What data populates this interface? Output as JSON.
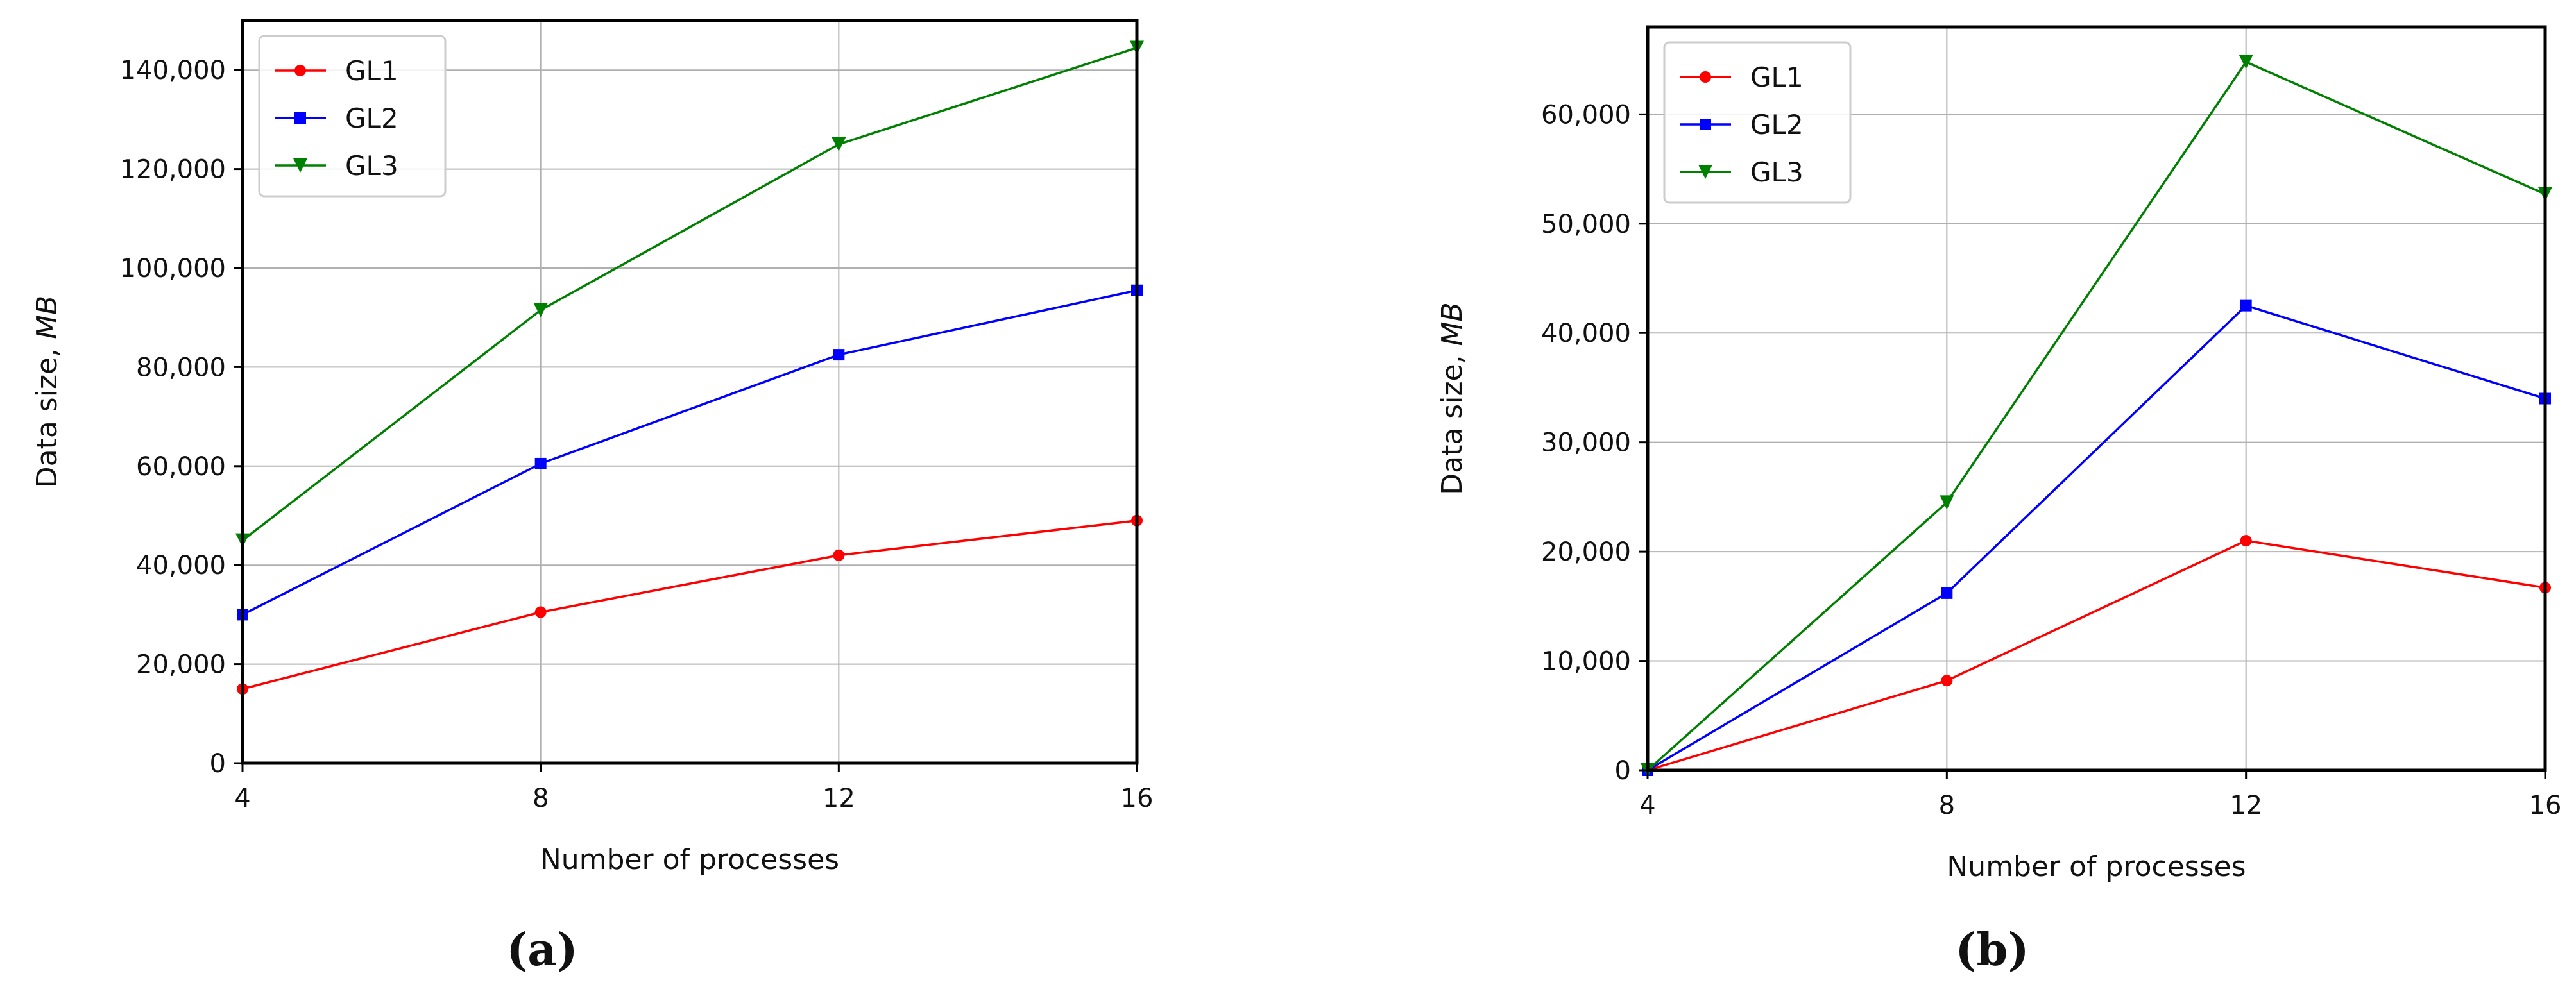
{
  "chart_data": [
    {
      "panel": "a",
      "type": "line",
      "xlabel": "Number of processes",
      "ylabel_prefix": "Data size, ",
      "ylabel_unit": "MB",
      "categories": [
        "4",
        "8",
        "12",
        "16"
      ],
      "x": [
        4,
        8,
        12,
        16
      ],
      "xlim": [
        4,
        16
      ],
      "ylim": [
        0,
        150000
      ],
      "yticks": [
        0,
        20000,
        40000,
        60000,
        80000,
        100000,
        120000,
        140000
      ],
      "ytick_labels": [
        "0",
        "20,000",
        "40,000",
        "60,000",
        "80,000",
        "100,000",
        "120,000",
        "140,000"
      ],
      "grid": true,
      "legend_position": "top-left",
      "series": [
        {
          "name": "GL1",
          "color": "#ff0000",
          "marker": "circle",
          "values": [
            15000,
            30500,
            42000,
            49000
          ]
        },
        {
          "name": "GL2",
          "color": "#0000ff",
          "marker": "square",
          "values": [
            30000,
            60500,
            82500,
            95500
          ]
        },
        {
          "name": "GL3",
          "color": "#008000",
          "marker": "triangle-down",
          "values": [
            45000,
            91500,
            125000,
            144500
          ]
        }
      ]
    },
    {
      "panel": "b",
      "type": "line",
      "xlabel": "Number of processes",
      "ylabel_prefix": "Data size, ",
      "ylabel_unit": "MB",
      "categories": [
        "4",
        "8",
        "12",
        "16"
      ],
      "x": [
        4,
        8,
        12,
        16
      ],
      "xlim": [
        4,
        16
      ],
      "ylim": [
        0,
        68000
      ],
      "yticks": [
        0,
        10000,
        20000,
        30000,
        40000,
        50000,
        60000
      ],
      "ytick_labels": [
        "0",
        "10,000",
        "20,000",
        "30,000",
        "40,000",
        "50,000",
        "60,000"
      ],
      "grid": true,
      "legend_position": "top-left",
      "series": [
        {
          "name": "GL1",
          "color": "#ff0000",
          "marker": "circle",
          "values": [
            0,
            8200,
            21000,
            16700
          ]
        },
        {
          "name": "GL2",
          "color": "#0000ff",
          "marker": "square",
          "values": [
            0,
            16200,
            42500,
            34000
          ]
        },
        {
          "name": "GL3",
          "color": "#008000",
          "marker": "triangle-down",
          "values": [
            0,
            24500,
            64800,
            52700
          ]
        }
      ]
    }
  ],
  "captions": [
    "(a)",
    "(b)"
  ]
}
